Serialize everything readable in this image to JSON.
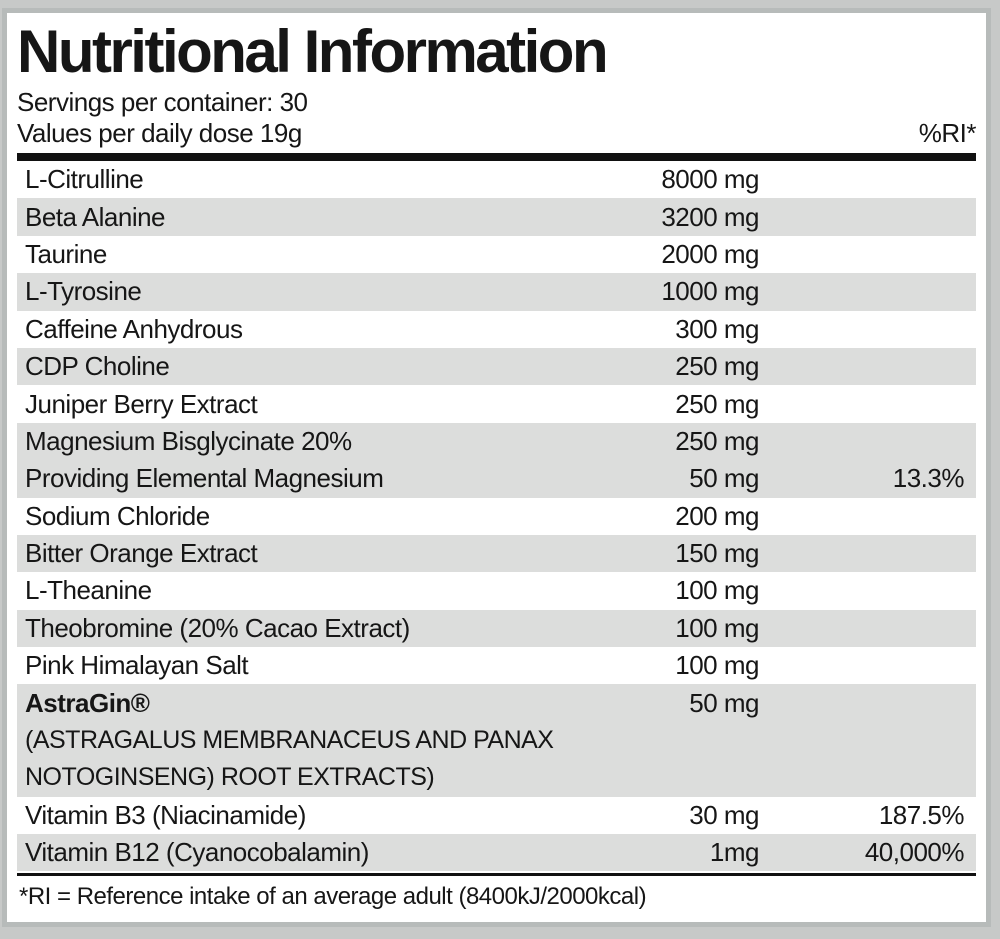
{
  "label": {
    "title": "Nutritional Information",
    "servings_line": "Servings per container: 30",
    "values_line": "Values per daily dose 19g",
    "ri_header": "%RI*",
    "footnote": "*RI = Reference intake of an average adult (8400kJ/2000kcal)"
  },
  "colors": {
    "row_shade": "#dcdddc",
    "frame_border": "#b7bbba",
    "page_background": "#c7c9c8",
    "text": "#161616",
    "rule": "#111111"
  },
  "table": {
    "rows": [
      {
        "name": "L-Citrulline",
        "amount": "8000 mg",
        "ri": "",
        "shaded": false
      },
      {
        "name": "Beta Alanine",
        "amount": "3200 mg",
        "ri": "",
        "shaded": true
      },
      {
        "name": "Taurine",
        "amount": "2000 mg",
        "ri": "",
        "shaded": false
      },
      {
        "name": "L-Tyrosine",
        "amount": "1000 mg",
        "ri": "",
        "shaded": true
      },
      {
        "name": "Caffeine Anhydrous",
        "amount": "300 mg",
        "ri": "",
        "shaded": false
      },
      {
        "name": "CDP Choline",
        "amount": "250 mg",
        "ri": "",
        "shaded": true
      },
      {
        "name": "Juniper Berry Extract",
        "amount": "250 mg",
        "ri": "",
        "shaded": false
      },
      {
        "name": "Magnesium Bisglycinate 20%",
        "amount": "250 mg",
        "ri": "",
        "shaded": true
      },
      {
        "name": "Providing Elemental Magnesium",
        "amount": "50 mg",
        "ri": "13.3%",
        "shaded": true
      },
      {
        "name": "Sodium Chloride",
        "amount": "200 mg",
        "ri": "",
        "shaded": false
      },
      {
        "name": "Bitter Orange Extract",
        "amount": "150 mg",
        "ri": "",
        "shaded": true
      },
      {
        "name": "L-Theanine",
        "amount": "100 mg",
        "ri": "",
        "shaded": false
      },
      {
        "name": "Theobromine (20% Cacao Extract)",
        "amount": "100 mg",
        "ri": "",
        "shaded": true
      },
      {
        "name": "Pink Himalayan Salt",
        "amount": "100 mg",
        "ri": "",
        "shaded": false
      },
      {
        "name": "AstraGin®",
        "amount": "50 mg",
        "ri": "",
        "shaded": true,
        "bold": true,
        "sublines": [
          "(ASTRAGALUS MEMBRANACEUS AND PANAX",
          "NOTOGINSENG) ROOT EXTRACTS)"
        ]
      },
      {
        "name": "Vitamin B3 (Niacinamide)",
        "amount": "30 mg",
        "ri": "187.5%",
        "shaded": false
      },
      {
        "name": "Vitamin B12 (Cyanocobalamin)",
        "amount": "1mg",
        "ri": "40,000%",
        "shaded": true
      }
    ]
  }
}
